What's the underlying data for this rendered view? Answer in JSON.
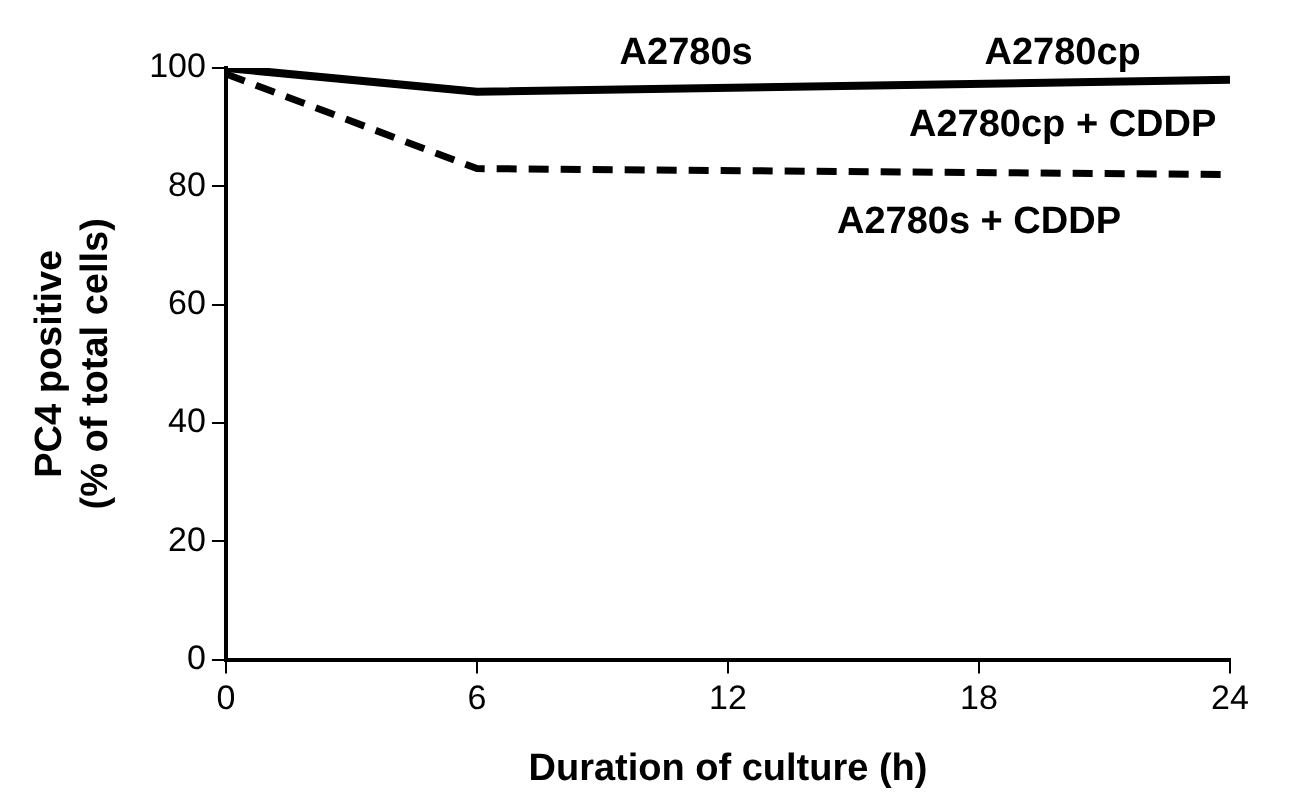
{
  "chart_data": {
    "type": "line",
    "xlabel": "Duration of culture (h)",
    "ylabel": "PC4 positive\n(% of total cells)",
    "xlim": [
      0,
      24
    ],
    "xticks": [
      0,
      6,
      12,
      18,
      24
    ],
    "ylim": [
      0,
      100
    ],
    "yticks": [
      0,
      20,
      40,
      60,
      80,
      100
    ],
    "grid": false,
    "legend": false,
    "marker": "none",
    "series": [
      {
        "color": "#000000",
        "x": [
          0,
          6,
          24
        ],
        "values": [
          100,
          96,
          98
        ],
        "line_style": "solid"
      },
      {
        "color": "#000000",
        "x": [
          0,
          6,
          24
        ],
        "values": [
          99,
          83,
          82
        ],
        "line_style": "dashed"
      }
    ],
    "annotations": [
      {
        "text": "A2780s",
        "x": 11,
        "y": 97
      },
      {
        "text": "A2780cp",
        "x": 20,
        "y": 97
      },
      {
        "text": "A2780cp + CDDP",
        "x": 20,
        "y": 97
      },
      {
        "text": "A2780s + CDDP",
        "x": 18,
        "y": 82
      }
    ]
  }
}
